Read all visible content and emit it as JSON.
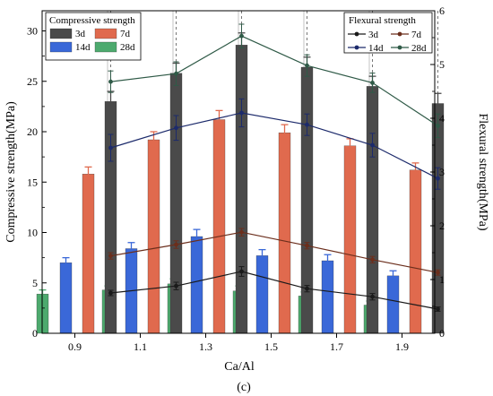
{
  "caption": "(c)",
  "chart_data": {
    "type": "bar",
    "xlabel": "Ca/Al",
    "ylabel_left": "Compressive strength(MPa)",
    "ylabel_right": "Flexural strength(MPa)",
    "categories": [
      "0.9",
      "1.1",
      "1.3",
      "1.5",
      "1.7",
      "1.9"
    ],
    "ylim_left": [
      0,
      32
    ],
    "yticks_left": [
      "0",
      "5",
      "10",
      "15",
      "20",
      "25",
      "30"
    ],
    "ylim_right": [
      0,
      6
    ],
    "yticks_right": [
      "0",
      "1",
      "2",
      "3",
      "4",
      "5",
      "6"
    ],
    "grid": false,
    "bar_legend_title": "Compressive strength",
    "line_legend_title": "Flexural strength",
    "bar_series": [
      {
        "name": "28d",
        "color": "#4daa6e",
        "values": [
          3.9,
          4.3,
          4.9,
          4.2,
          3.7,
          2.8
        ],
        "errors": [
          0.4,
          0.4,
          0.5,
          0.5,
          0.4,
          0.4
        ]
      },
      {
        "name": "14d",
        "color": "#3a68d8",
        "values": [
          7.0,
          8.4,
          9.6,
          7.7,
          7.2,
          5.7
        ],
        "errors": [
          0.5,
          0.6,
          0.7,
          0.6,
          0.6,
          0.5
        ]
      },
      {
        "name": "7d",
        "color": "#e06a4e",
        "values": [
          15.8,
          19.2,
          21.2,
          19.9,
          18.6,
          16.2
        ],
        "errors": [
          0.7,
          0.8,
          0.9,
          0.8,
          0.7,
          0.7
        ]
      },
      {
        "name": "3d",
        "color": "#4a4a4a",
        "values": [
          23.0,
          25.8,
          28.6,
          26.4,
          24.5,
          22.8
        ],
        "errors": [
          1.0,
          1.0,
          1.2,
          1.0,
          1.0,
          1.0
        ]
      }
    ],
    "bar_legend_order": [
      "3d",
      "7d",
      "14d",
      "28d"
    ],
    "line_series": [
      {
        "name": "3d",
        "color": "#1a1a1a",
        "values": [
          0.75,
          0.88,
          1.15,
          0.83,
          0.68,
          0.45
        ],
        "errors": [
          0.05,
          0.07,
          0.09,
          0.06,
          0.06,
          0.04
        ]
      },
      {
        "name": "7d",
        "color": "#6b2e1c",
        "values": [
          1.44,
          1.65,
          1.88,
          1.63,
          1.37,
          1.13
        ],
        "errors": [
          0.06,
          0.07,
          0.07,
          0.06,
          0.06,
          0.05
        ]
      },
      {
        "name": "14d",
        "color": "#1c2a6b",
        "values": [
          3.45,
          3.82,
          4.1,
          3.88,
          3.5,
          2.88
        ],
        "errors": [
          0.25,
          0.23,
          0.26,
          0.2,
          0.22,
          0.2
        ]
      },
      {
        "name": "28d",
        "color": "#2f5a47",
        "values": [
          4.68,
          4.83,
          5.53,
          4.98,
          4.66,
          3.86
        ],
        "errors": [
          0.2,
          0.22,
          0.22,
          0.2,
          0.18,
          0.22
        ]
      }
    ]
  }
}
